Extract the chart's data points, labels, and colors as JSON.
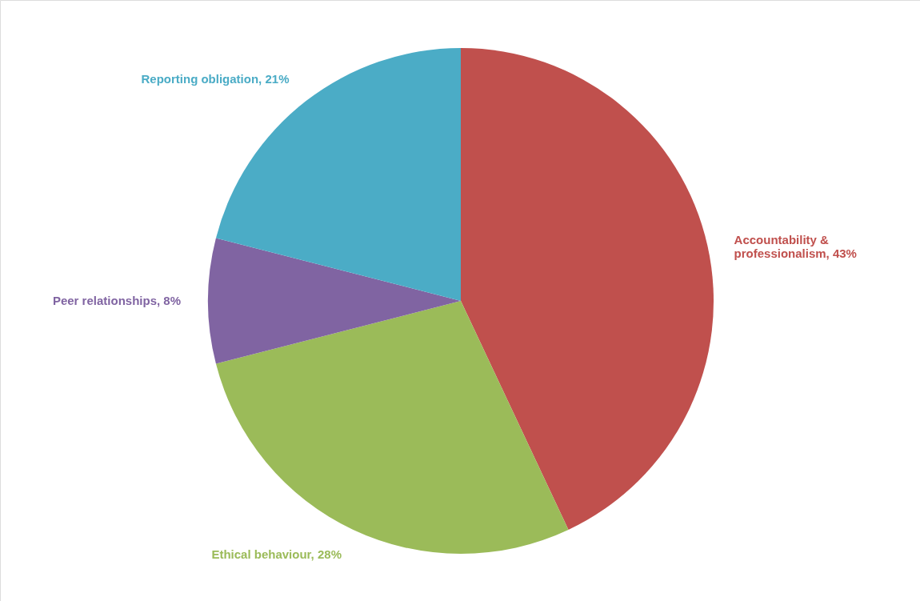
{
  "chart_data": {
    "type": "pie",
    "categories": [
      "Accountability & professionalism",
      "Ethical behaviour",
      "Peer relationships",
      "Reporting obligation"
    ],
    "values": [
      43,
      28,
      8,
      21
    ],
    "value_labels": [
      "43%",
      "28%",
      "8%",
      "21%"
    ],
    "colors": [
      "#c0504d",
      "#9bbb59",
      "#8064a2",
      "#4bacc6"
    ]
  }
}
